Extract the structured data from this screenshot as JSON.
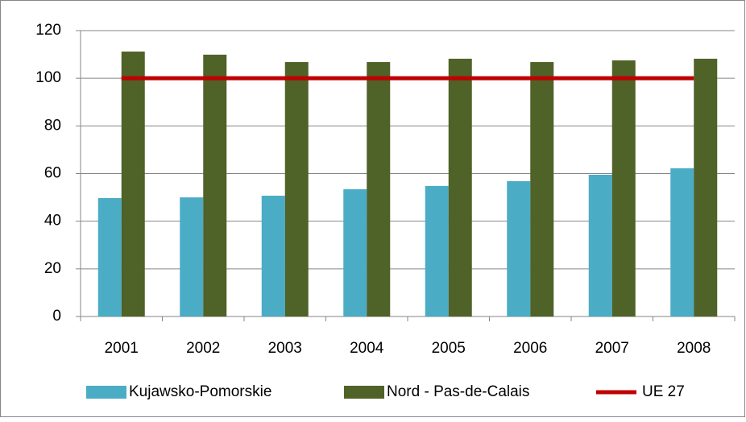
{
  "chart_data": {
    "type": "bar",
    "categories": [
      "2001",
      "2002",
      "2003",
      "2004",
      "2005",
      "2006",
      "2007",
      "2008"
    ],
    "series": [
      {
        "name": "Kujawsko-Pomorskie",
        "color": "#4bacc6",
        "type": "bar",
        "values": [
          49.7,
          50,
          50.7,
          53.4,
          54.8,
          56.8,
          59.5,
          62.2
        ]
      },
      {
        "name": "Nord - Pas-de-Calais",
        "color": "#4f6228",
        "type": "bar",
        "values": [
          111.2,
          109.9,
          106.8,
          106.8,
          108.2,
          106.8,
          107.5,
          108.2
        ]
      },
      {
        "name": "UE 27",
        "color": "#c00000",
        "type": "line",
        "values": [
          100,
          100,
          100,
          100,
          100,
          100,
          100,
          100
        ]
      }
    ],
    "ylim": [
      0,
      120
    ],
    "yticks": [
      0,
      20,
      40,
      60,
      80,
      100,
      120
    ],
    "grid": true,
    "legend": "bottom"
  }
}
